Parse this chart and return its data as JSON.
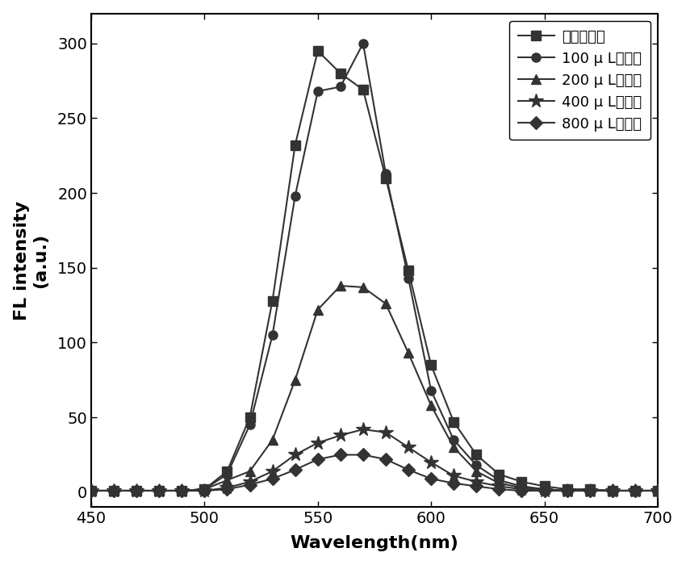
{
  "xlabel": "Wavelength(nm)",
  "ylabel": "FL intensity(a.u.)",
  "xlim": [
    450,
    700
  ],
  "ylim": [
    -10,
    320
  ],
  "yticks": [
    0,
    50,
    100,
    150,
    200,
    250,
    300
  ],
  "xticks": [
    450,
    500,
    550,
    600,
    650,
    700
  ],
  "line_color": "#333333",
  "series": [
    {
      "label": "不加绿原酸",
      "marker": "s",
      "x": [
        450,
        460,
        470,
        480,
        490,
        500,
        510,
        520,
        530,
        540,
        550,
        560,
        570,
        580,
        590,
        600,
        610,
        620,
        630,
        640,
        650,
        660,
        670,
        680,
        690,
        700
      ],
      "y": [
        1,
        1,
        1,
        1,
        1,
        2,
        14,
        50,
        128,
        232,
        295,
        280,
        269,
        210,
        148,
        85,
        47,
        25,
        12,
        7,
        4,
        2,
        2,
        1,
        1,
        1
      ]
    },
    {
      "label": "100 μ L绻原酸",
      "marker": "o",
      "x": [
        450,
        460,
        470,
        480,
        490,
        500,
        510,
        520,
        530,
        540,
        550,
        560,
        570,
        580,
        590,
        600,
        610,
        620,
        630,
        640,
        650,
        660,
        670,
        680,
        690,
        700
      ],
      "y": [
        1,
        1,
        1,
        1,
        1,
        2,
        12,
        45,
        105,
        198,
        268,
        271,
        300,
        213,
        143,
        68,
        35,
        18,
        8,
        4,
        2,
        1,
        1,
        1,
        1,
        1
      ]
    },
    {
      "label": "200 μ L绻原酸",
      "marker": "^",
      "x": [
        450,
        460,
        470,
        480,
        490,
        500,
        510,
        520,
        530,
        540,
        550,
        560,
        570,
        580,
        590,
        600,
        610,
        620,
        630,
        640,
        650,
        660,
        670,
        680,
        690,
        700
      ],
      "y": [
        1,
        1,
        1,
        1,
        1,
        2,
        8,
        14,
        35,
        75,
        122,
        138,
        137,
        126,
        93,
        58,
        30,
        14,
        6,
        3,
        2,
        1,
        1,
        1,
        1,
        1
      ]
    },
    {
      "label": "400 μ L绻原酸",
      "marker": "*",
      "x": [
        450,
        460,
        470,
        480,
        490,
        500,
        510,
        520,
        530,
        540,
        550,
        560,
        570,
        580,
        590,
        600,
        610,
        620,
        630,
        640,
        650,
        660,
        670,
        680,
        690,
        700
      ],
      "y": [
        1,
        1,
        1,
        1,
        1,
        1,
        3,
        7,
        14,
        25,
        33,
        38,
        42,
        40,
        30,
        20,
        11,
        7,
        4,
        2,
        1,
        1,
        1,
        1,
        1,
        1
      ]
    },
    {
      "label": "800 μ L绻原酸",
      "marker": "D",
      "x": [
        450,
        460,
        470,
        480,
        490,
        500,
        510,
        520,
        530,
        540,
        550,
        560,
        570,
        580,
        590,
        600,
        610,
        620,
        630,
        640,
        650,
        660,
        670,
        680,
        690,
        700
      ],
      "y": [
        1,
        1,
        1,
        1,
        1,
        1,
        2,
        5,
        9,
        15,
        22,
        25,
        25,
        22,
        15,
        9,
        6,
        4,
        2,
        1,
        1,
        1,
        1,
        1,
        1,
        1
      ]
    }
  ],
  "axis_label_fontsize": 16,
  "tick_fontsize": 14,
  "legend_fontsize": 13,
  "marker_size": 8,
  "star_marker_size": 13,
  "linewidth": 1.5
}
